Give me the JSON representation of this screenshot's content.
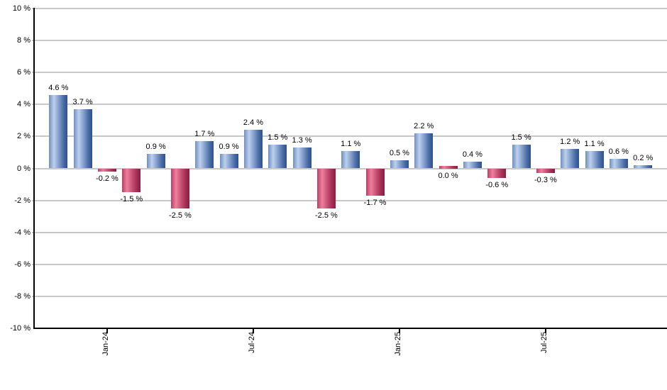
{
  "chart_data": {
    "type": "bar",
    "title": "",
    "xlabel": "",
    "ylabel": "",
    "ylim": [
      -10,
      10
    ],
    "grid": true,
    "legend": false,
    "y_ticks": [
      {
        "value": 10,
        "label": "10 %"
      },
      {
        "value": 8,
        "label": "8 %"
      },
      {
        "value": 6,
        "label": "6 %"
      },
      {
        "value": 4,
        "label": "4 %"
      },
      {
        "value": 2,
        "label": "2 %"
      },
      {
        "value": 0,
        "label": "0 %"
      },
      {
        "value": -2,
        "label": "-2 %"
      },
      {
        "value": -4,
        "label": "-4 %"
      },
      {
        "value": -6,
        "label": "-6 %"
      },
      {
        "value": -8,
        "label": "-8 %"
      },
      {
        "value": -10,
        "label": "-10 %"
      }
    ],
    "x_ticks": [
      {
        "label": "Jan-24",
        "bar_index": 2
      },
      {
        "label": "Jul-24",
        "bar_index": 8
      },
      {
        "label": "Jan-25",
        "bar_index": 14
      },
      {
        "label": "Jul-25",
        "bar_index": 20
      }
    ],
    "bars": [
      {
        "value": 4.6,
        "label": "4.6 %",
        "color": "positive",
        "label_position": "above"
      },
      {
        "value": 3.7,
        "label": "3.7 %",
        "color": "positive",
        "label_position": "above"
      },
      {
        "value": -0.2,
        "label": "-0.2 %",
        "color": "negative",
        "label_position": "below"
      },
      {
        "value": -1.5,
        "label": "-1.5 %",
        "color": "negative",
        "label_position": "below"
      },
      {
        "value": 0.9,
        "label": "0.9 %",
        "color": "positive",
        "label_position": "above"
      },
      {
        "value": -2.5,
        "label": "-2.5 %",
        "color": "negative",
        "label_position": "below"
      },
      {
        "value": 1.7,
        "label": "1.7 %",
        "color": "positive",
        "label_position": "above"
      },
      {
        "value": 0.9,
        "label": "0.9 %",
        "color": "positive",
        "label_position": "above"
      },
      {
        "value": 2.4,
        "label": "2.4 %",
        "color": "positive",
        "label_position": "above"
      },
      {
        "value": 1.5,
        "label": "1.5 %",
        "color": "positive",
        "label_position": "above"
      },
      {
        "value": 1.3,
        "label": "1.3 %",
        "color": "positive",
        "label_position": "above"
      },
      {
        "value": -2.5,
        "label": "-2.5 %",
        "color": "negative",
        "label_position": "below"
      },
      {
        "value": 1.1,
        "label": "1.1 %",
        "color": "positive",
        "label_position": "above"
      },
      {
        "value": -1.7,
        "label": "-1.7 %",
        "color": "negative",
        "label_position": "below"
      },
      {
        "value": 0.5,
        "label": "0.5 %",
        "color": "positive",
        "label_position": "above"
      },
      {
        "value": 2.2,
        "label": "2.2 %",
        "color": "positive",
        "label_position": "above"
      },
      {
        "value": 0.0,
        "label": "0.0 %",
        "color": "negative",
        "label_position": "below"
      },
      {
        "value": 0.4,
        "label": "0.4 %",
        "color": "positive",
        "label_position": "above"
      },
      {
        "value": -0.6,
        "label": "-0.6 %",
        "color": "negative",
        "label_position": "below"
      },
      {
        "value": 1.5,
        "label": "1.5 %",
        "color": "positive",
        "label_position": "above"
      },
      {
        "value": -0.3,
        "label": "-0.3 %",
        "color": "negative",
        "label_position": "below"
      },
      {
        "value": 1.2,
        "label": "1.2 %",
        "color": "positive",
        "label_position": "above"
      },
      {
        "value": 1.1,
        "label": "1.1 %",
        "color": "positive",
        "label_position": "above"
      },
      {
        "value": 0.6,
        "label": "0.6 %",
        "color": "positive",
        "label_position": "above"
      },
      {
        "value": 0.2,
        "label": "0.2 %",
        "color": "positive",
        "label_position": "above"
      }
    ],
    "colors": {
      "positive_gradient": [
        {
          "pos": 0,
          "c": "#6f8fc0"
        },
        {
          "pos": 0.27,
          "c": "#bdd0ed"
        },
        {
          "pos": 0.55,
          "c": "#7e9bc9"
        },
        {
          "pos": 0.8,
          "c": "#4a6ba2"
        },
        {
          "pos": 1,
          "c": "#2d5090"
        }
      ],
      "negative_gradient": [
        {
          "pos": 0,
          "c": "#bb3d66"
        },
        {
          "pos": 0.27,
          "c": "#ef7f9d"
        },
        {
          "pos": 0.55,
          "c": "#c75073"
        },
        {
          "pos": 0.8,
          "c": "#a32e54"
        },
        {
          "pos": 1,
          "c": "#8a1c42"
        }
      ],
      "gridline": "#c9c9c9",
      "axis": "#000000",
      "text": "#000000",
      "background": "#ffffff"
    }
  }
}
